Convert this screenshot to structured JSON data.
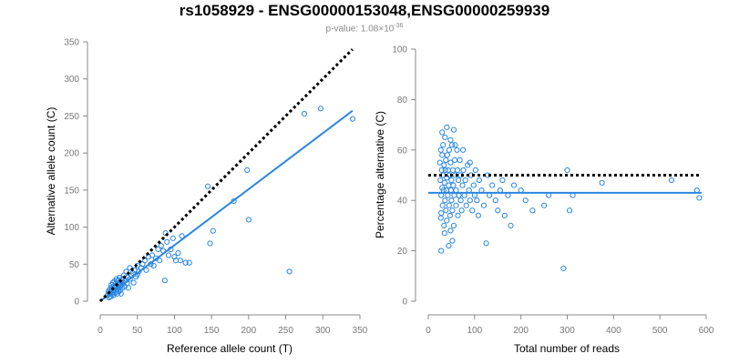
{
  "title": "rs1058929 - ENSG00000153048,ENSG00000259939",
  "subtitle": {
    "prefix": "p-value: 1.08×10",
    "exponent": "-36"
  },
  "colors": {
    "points": "#2a86e0",
    "reference_line": "#000000",
    "axis": "#888888"
  },
  "chart_data": [
    {
      "type": "scatter",
      "xlabel": "Reference allele count (T)",
      "ylabel": "Alternative allele count (C)",
      "xlim": [
        0,
        350
      ],
      "ylim": [
        0,
        350
      ],
      "xticks": [
        0,
        50,
        100,
        150,
        200,
        250,
        300,
        350
      ],
      "yticks": [
        0,
        50,
        100,
        150,
        200,
        250,
        300,
        350
      ],
      "grid": false,
      "points": [
        [
          10,
          8
        ],
        [
          11,
          12
        ],
        [
          12,
          15
        ],
        [
          12,
          5
        ],
        [
          13,
          10
        ],
        [
          14,
          18
        ],
        [
          14,
          6
        ],
        [
          15,
          14
        ],
        [
          15,
          22
        ],
        [
          16,
          9
        ],
        [
          16,
          17
        ],
        [
          17,
          12
        ],
        [
          17,
          25
        ],
        [
          18,
          8
        ],
        [
          18,
          20
        ],
        [
          19,
          15
        ],
        [
          19,
          27
        ],
        [
          20,
          11
        ],
        [
          20,
          18
        ],
        [
          21,
          24
        ],
        [
          21,
          14
        ],
        [
          22,
          20
        ],
        [
          22,
          30
        ],
        [
          23,
          16
        ],
        [
          23,
          10
        ],
        [
          24,
          22
        ],
        [
          24,
          28
        ],
        [
          25,
          18
        ],
        [
          25,
          13
        ],
        [
          26,
          25
        ],
        [
          26,
          32
        ],
        [
          27,
          20
        ],
        [
          27,
          15
        ],
        [
          28,
          27
        ],
        [
          28,
          10
        ],
        [
          29,
          22
        ],
        [
          30,
          18
        ],
        [
          30,
          30
        ],
        [
          31,
          25
        ],
        [
          32,
          35
        ],
        [
          33,
          20
        ],
        [
          34,
          28
        ],
        [
          35,
          40
        ],
        [
          36,
          24
        ],
        [
          37,
          32
        ],
        [
          38,
          18
        ],
        [
          40,
          45
        ],
        [
          40,
          30
        ],
        [
          42,
          35
        ],
        [
          44,
          38
        ],
        [
          45,
          25
        ],
        [
          46,
          42
        ],
        [
          48,
          33
        ],
        [
          50,
          48
        ],
        [
          50,
          36
        ],
        [
          52,
          40
        ],
        [
          55,
          45
        ],
        [
          57,
          50
        ],
        [
          60,
          55
        ],
        [
          62,
          42
        ],
        [
          65,
          60
        ],
        [
          68,
          50
        ],
        [
          70,
          62
        ],
        [
          72,
          48
        ],
        [
          75,
          58
        ],
        [
          78,
          70
        ],
        [
          80,
          55
        ],
        [
          82,
          75
        ],
        [
          85,
          68
        ],
        [
          87,
          28
        ],
        [
          88,
          92
        ],
        [
          90,
          80
        ],
        [
          92,
          62
        ],
        [
          95,
          70
        ],
        [
          98,
          85
        ],
        [
          100,
          60
        ],
        [
          102,
          55
        ],
        [
          105,
          65
        ],
        [
          108,
          55
        ],
        [
          110,
          88
        ],
        [
          115,
          52
        ],
        [
          120,
          52
        ],
        [
          145,
          155
        ],
        [
          148,
          78
        ],
        [
          152,
          95
        ],
        [
          180,
          135
        ],
        [
          198,
          177
        ],
        [
          200,
          110
        ],
        [
          255,
          40
        ],
        [
          275,
          253
        ],
        [
          297,
          260
        ],
        [
          340,
          246
        ]
      ],
      "fit_line": {
        "x": [
          0,
          340
        ],
        "y": [
          0,
          257
        ]
      },
      "reference_line": {
        "x": [
          0,
          340
        ],
        "y": [
          0,
          340
        ]
      }
    },
    {
      "type": "scatter",
      "xlabel": "Total number of reads",
      "ylabel": "Percentage alternative (C)",
      "xlim": [
        0,
        600
      ],
      "ylim": [
        0,
        100
      ],
      "xticks": [
        0,
        100,
        200,
        300,
        400,
        500,
        600
      ],
      "yticks": [
        0,
        20,
        40,
        60,
        80,
        100
      ],
      "grid": false,
      "points": [
        [
          25,
          55
        ],
        [
          26,
          48
        ],
        [
          27,
          60
        ],
        [
          28,
          42
        ],
        [
          28,
          35
        ],
        [
          29,
          52
        ],
        [
          30,
          45
        ],
        [
          30,
          58
        ],
        [
          31,
          38
        ],
        [
          32,
          50
        ],
        [
          32,
          62
        ],
        [
          33,
          44
        ],
        [
          34,
          30
        ],
        [
          34,
          54
        ],
        [
          35,
          47
        ],
        [
          36,
          40
        ],
        [
          36,
          65
        ],
        [
          37,
          52
        ],
        [
          38,
          36
        ],
        [
          38,
          56
        ],
        [
          39,
          44
        ],
        [
          40,
          49
        ],
        [
          40,
          32
        ],
        [
          41,
          58
        ],
        [
          42,
          42
        ],
        [
          43,
          52
        ],
        [
          44,
          46
        ],
        [
          45,
          38
        ],
        [
          45,
          60
        ],
        [
          46,
          50
        ],
        [
          47,
          34
        ],
        [
          48,
          55
        ],
        [
          48,
          28
        ],
        [
          49,
          44
        ],
        [
          50,
          48
        ],
        [
          50,
          40
        ],
        [
          51,
          62
        ],
        [
          52,
          36
        ],
        [
          53,
          52
        ],
        [
          54,
          46
        ],
        [
          55,
          30
        ],
        [
          55,
          68
        ],
        [
          56,
          42
        ],
        [
          57,
          56
        ],
        [
          58,
          50
        ],
        [
          60,
          38
        ],
        [
          60,
          44
        ],
        [
          62,
          60
        ],
        [
          63,
          52
        ],
        [
          64,
          34
        ],
        [
          65,
          48
        ],
        [
          66,
          42
        ],
        [
          68,
          56
        ],
        [
          70,
          40
        ],
        [
          70,
          50
        ],
        [
          72,
          36
        ],
        [
          74,
          46
        ],
        [
          75,
          60
        ],
        [
          76,
          52
        ],
        [
          78,
          42
        ],
        [
          80,
          48
        ],
        [
          82,
          38
        ],
        [
          85,
          54
        ],
        [
          88,
          44
        ],
        [
          90,
          40
        ],
        [
          92,
          50
        ],
        [
          95,
          36
        ],
        [
          98,
          46
        ],
        [
          100,
          42
        ],
        [
          102,
          52
        ],
        [
          105,
          40
        ],
        [
          108,
          34
        ],
        [
          110,
          48
        ],
        [
          115,
          44
        ],
        [
          120,
          38
        ],
        [
          125,
          23
        ],
        [
          128,
          50
        ],
        [
          132,
          42
        ],
        [
          138,
          46
        ],
        [
          145,
          40
        ],
        [
          150,
          36
        ],
        [
          155,
          44
        ],
        [
          160,
          48
        ],
        [
          165,
          34
        ],
        [
          172,
          42
        ],
        [
          178,
          30
        ],
        [
          185,
          46
        ],
        [
          200,
          44
        ],
        [
          210,
          40
        ],
        [
          225,
          36
        ],
        [
          250,
          38
        ],
        [
          260,
          42
        ],
        [
          292,
          13
        ],
        [
          300,
          52
        ],
        [
          305,
          36
        ],
        [
          312,
          42
        ],
        [
          375,
          47
        ],
        [
          525,
          48
        ],
        [
          580,
          44
        ],
        [
          585,
          41
        ],
        [
          28,
          20
        ],
        [
          35,
          27
        ],
        [
          44,
          22
        ],
        [
          52,
          24
        ],
        [
          30,
          67
        ],
        [
          40,
          69
        ],
        [
          48,
          64
        ],
        [
          58,
          62
        ],
        [
          90,
          55
        ],
        [
          27,
          33
        ]
      ],
      "fit_line": {
        "x": [
          0,
          590
        ],
        "y": [
          43,
          43
        ]
      },
      "reference_line": {
        "x": [
          0,
          590
        ],
        "y": [
          50,
          50
        ]
      }
    }
  ]
}
